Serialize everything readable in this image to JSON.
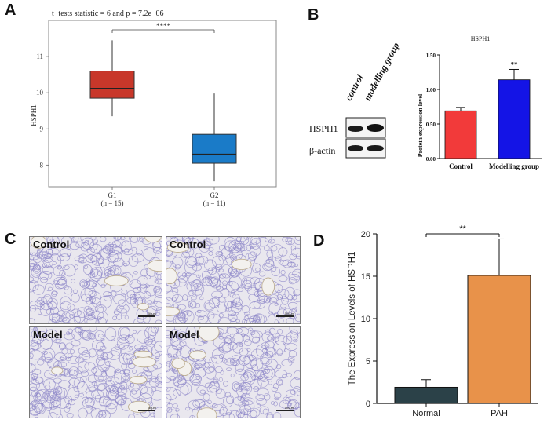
{
  "panels": {
    "a_label": "A",
    "b_label": "B",
    "c_label": "C",
    "d_label": "D"
  },
  "colors": {
    "g1_box": "#c8372a",
    "g2_box": "#1a7bc8",
    "control_bar": "#f23a3a",
    "model_bar": "#1414e6",
    "normal_bar": "#2b4148",
    "pah_bar": "#e8924a",
    "tissue_stain": "#8c86c8"
  },
  "chart_data": [
    {
      "id": "A",
      "type": "box",
      "title": "t−tests statistic = 6 and p = 7.2e−06",
      "ylabel": "HSPH1",
      "ylim": [
        7.4,
        12.0
      ],
      "yticks": [
        "8",
        "9",
        "10",
        "11"
      ],
      "significance": "****",
      "groups": [
        {
          "name": "G1",
          "n_label": "(n = 15)",
          "min": 9.35,
          "q1": 9.85,
          "median": 10.12,
          "q3": 10.6,
          "max": 11.45
        },
        {
          "name": "G2",
          "n_label": "(n = 11)",
          "min": 7.55,
          "q1": 8.05,
          "median": 8.3,
          "q3": 8.85,
          "max": 9.98
        }
      ]
    },
    {
      "id": "B",
      "type": "bar",
      "title": "HSPH1",
      "ylabel": "Protein expression level",
      "ylim": [
        0,
        1.5
      ],
      "yticks": [
        "0.00",
        "0.50",
        "1.00",
        "1.50"
      ],
      "categories": [
        "Control",
        "Modelling group"
      ],
      "values": [
        0.69,
        1.14
      ],
      "errors": [
        0.05,
        0.15
      ],
      "significance": "**"
    },
    {
      "id": "D",
      "type": "bar",
      "ylabel": "The Expression Levels of HSPH1",
      "ylim": [
        0,
        20
      ],
      "yticks": [
        "0",
        "5",
        "10",
        "15",
        "20"
      ],
      "categories": [
        "Normal",
        "PAH"
      ],
      "values": [
        1.9,
        15.1
      ],
      "errors": [
        0.9,
        4.3
      ],
      "significance": "**"
    }
  ],
  "blot": {
    "lanes": [
      "control",
      "modelling group"
    ],
    "rows": [
      "HSPH1",
      "β-actin"
    ]
  },
  "micrographs": [
    {
      "label": "Control",
      "scale": "50μm"
    },
    {
      "label": "Control",
      "scale": "100μm"
    },
    {
      "label": "Model",
      "scale": "50μm"
    },
    {
      "label": "Model",
      "scale": "100μm"
    }
  ]
}
